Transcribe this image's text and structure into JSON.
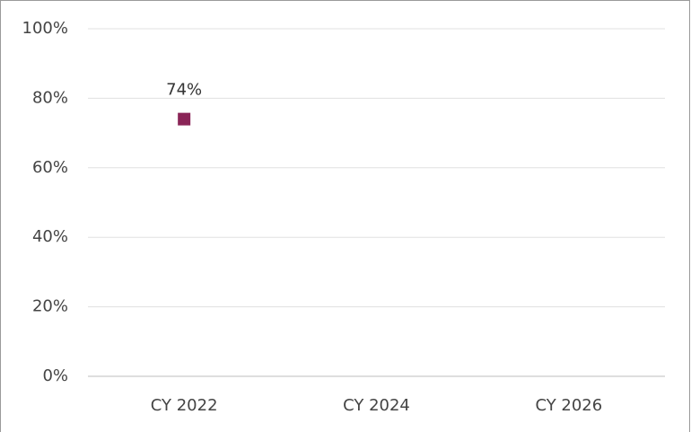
{
  "chart_data": {
    "type": "line",
    "categories": [
      "CY 2022",
      "CY 2024",
      "CY 2026"
    ],
    "values": [
      74,
      null,
      null
    ],
    "value_labels": [
      "74%",
      null,
      null
    ],
    "color": "#8a2457",
    "marker": "square",
    "ylim": [
      0,
      100
    ],
    "yticks": [
      {
        "value": 0,
        "label": "0%"
      },
      {
        "value": 20,
        "label": "20%"
      },
      {
        "value": 40,
        "label": "40%"
      },
      {
        "value": 60,
        "label": "60%"
      },
      {
        "value": 80,
        "label": "80%"
      },
      {
        "value": 100,
        "label": "100%"
      }
    ],
    "grid": true
  }
}
